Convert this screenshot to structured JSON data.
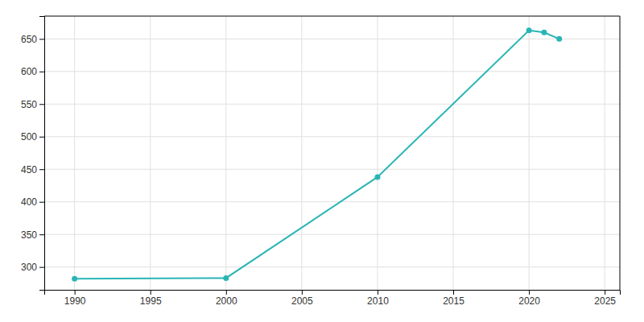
{
  "chart_data": {
    "type": "line",
    "x": [
      1990,
      2000,
      2010,
      2020,
      2021,
      2022
    ],
    "values": [
      282,
      283,
      438,
      663,
      660,
      650
    ],
    "color": "#2ab5b5",
    "marker": "circle",
    "xlim": [
      1988,
      2026
    ],
    "ylim": [
      265,
      685
    ],
    "xticks": [
      1990,
      1995,
      2000,
      2005,
      2010,
      2015,
      2020,
      2025
    ],
    "yticks": [
      300,
      350,
      400,
      450,
      500,
      550,
      600,
      650
    ],
    "grid": true
  }
}
